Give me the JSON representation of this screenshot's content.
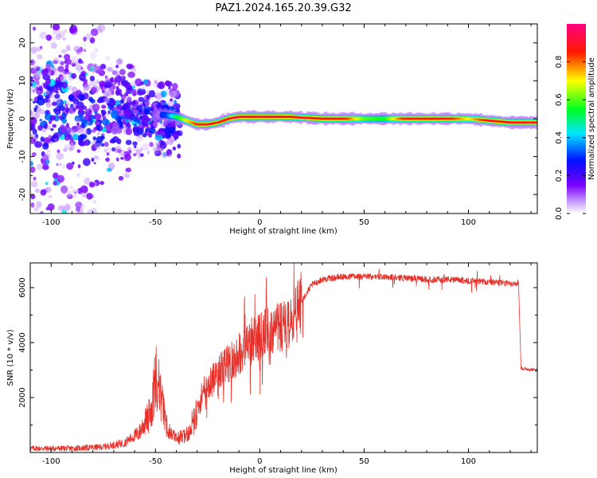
{
  "title": "PAZ1.2024.165.20.39.G32",
  "chart_data": [
    {
      "type": "heatmap",
      "xlabel": "Height of straight line (km)",
      "ylabel": "Frequency (Hz)",
      "xlim": [
        -110,
        133
      ],
      "ylim": [
        -25,
        25
      ],
      "xticks": [
        -100,
        -50,
        0,
        50,
        100
      ],
      "yticks": [
        -20,
        -10,
        0,
        10,
        20
      ],
      "colorbar": {
        "label": "Normalized spectral amplitude",
        "range": [
          0,
          1
        ],
        "ticks": [
          0.0,
          0.2,
          0.4,
          0.6,
          0.8
        ],
        "colormap": "rainbow: white-violet-blue-cyan-green-yellow-red-pink"
      },
      "ridge": {
        "x": [
          -45,
          -40,
          -35,
          -30,
          -25,
          -20,
          -15,
          -10,
          -5,
          0,
          5,
          10,
          15,
          20,
          30,
          40,
          50,
          60,
          70,
          80,
          90,
          100,
          110,
          120,
          133
        ],
        "frequency": [
          1.0,
          0.5,
          -0.5,
          -1.5,
          -1.5,
          -1.0,
          0.0,
          0.5,
          0.5,
          0.5,
          0.5,
          0.5,
          0.5,
          0.3,
          0.0,
          0.0,
          0.0,
          0.0,
          0.0,
          0.0,
          0.0,
          0.0,
          -0.5,
          -1.0,
          -1.0
        ],
        "amplitude": [
          0.3,
          0.5,
          0.7,
          0.85,
          0.9,
          0.85,
          0.9,
          0.95,
          0.95,
          0.95,
          0.95,
          0.95,
          0.9,
          0.85,
          0.9,
          0.9,
          0.6,
          0.55,
          0.9,
          0.9,
          0.9,
          0.7,
          0.9,
          0.9,
          0.9
        ]
      },
      "noise_region": {
        "x_range": [
          -110,
          -40
        ],
        "frequency_range": [
          -25,
          25
        ]
      }
    },
    {
      "type": "line",
      "xlabel": "Height of straight line (km)",
      "ylabel": "SNR (10 * v/v)",
      "xlim": [
        -110,
        133
      ],
      "ylim": [
        0,
        6900
      ],
      "xticks": [
        -100,
        -50,
        0,
        50,
        100
      ],
      "yticks": [
        2000,
        4000,
        6000
      ],
      "color": "#e8302a",
      "envelope": {
        "x": [
          -110,
          -90,
          -75,
          -65,
          -58,
          -52,
          -50,
          -48,
          -45,
          -40,
          -36,
          -33,
          -30,
          -25,
          -20,
          -15,
          -10,
          -5,
          0,
          5,
          10,
          15,
          20,
          25,
          30,
          40,
          50,
          60,
          70,
          80,
          90,
          100,
          110,
          120,
          124,
          125,
          126,
          133
        ],
        "snr": [
          150,
          150,
          200,
          350,
          700,
          1500,
          2800,
          2300,
          1000,
          500,
          600,
          900,
          1500,
          2400,
          3000,
          3200,
          3600,
          4000,
          4200,
          4500,
          4600,
          4600,
          5500,
          6100,
          6300,
          6400,
          6400,
          6400,
          6350,
          6300,
          6300,
          6250,
          6200,
          6150,
          6200,
          3100,
          3050,
          3000
        ]
      }
    }
  ]
}
